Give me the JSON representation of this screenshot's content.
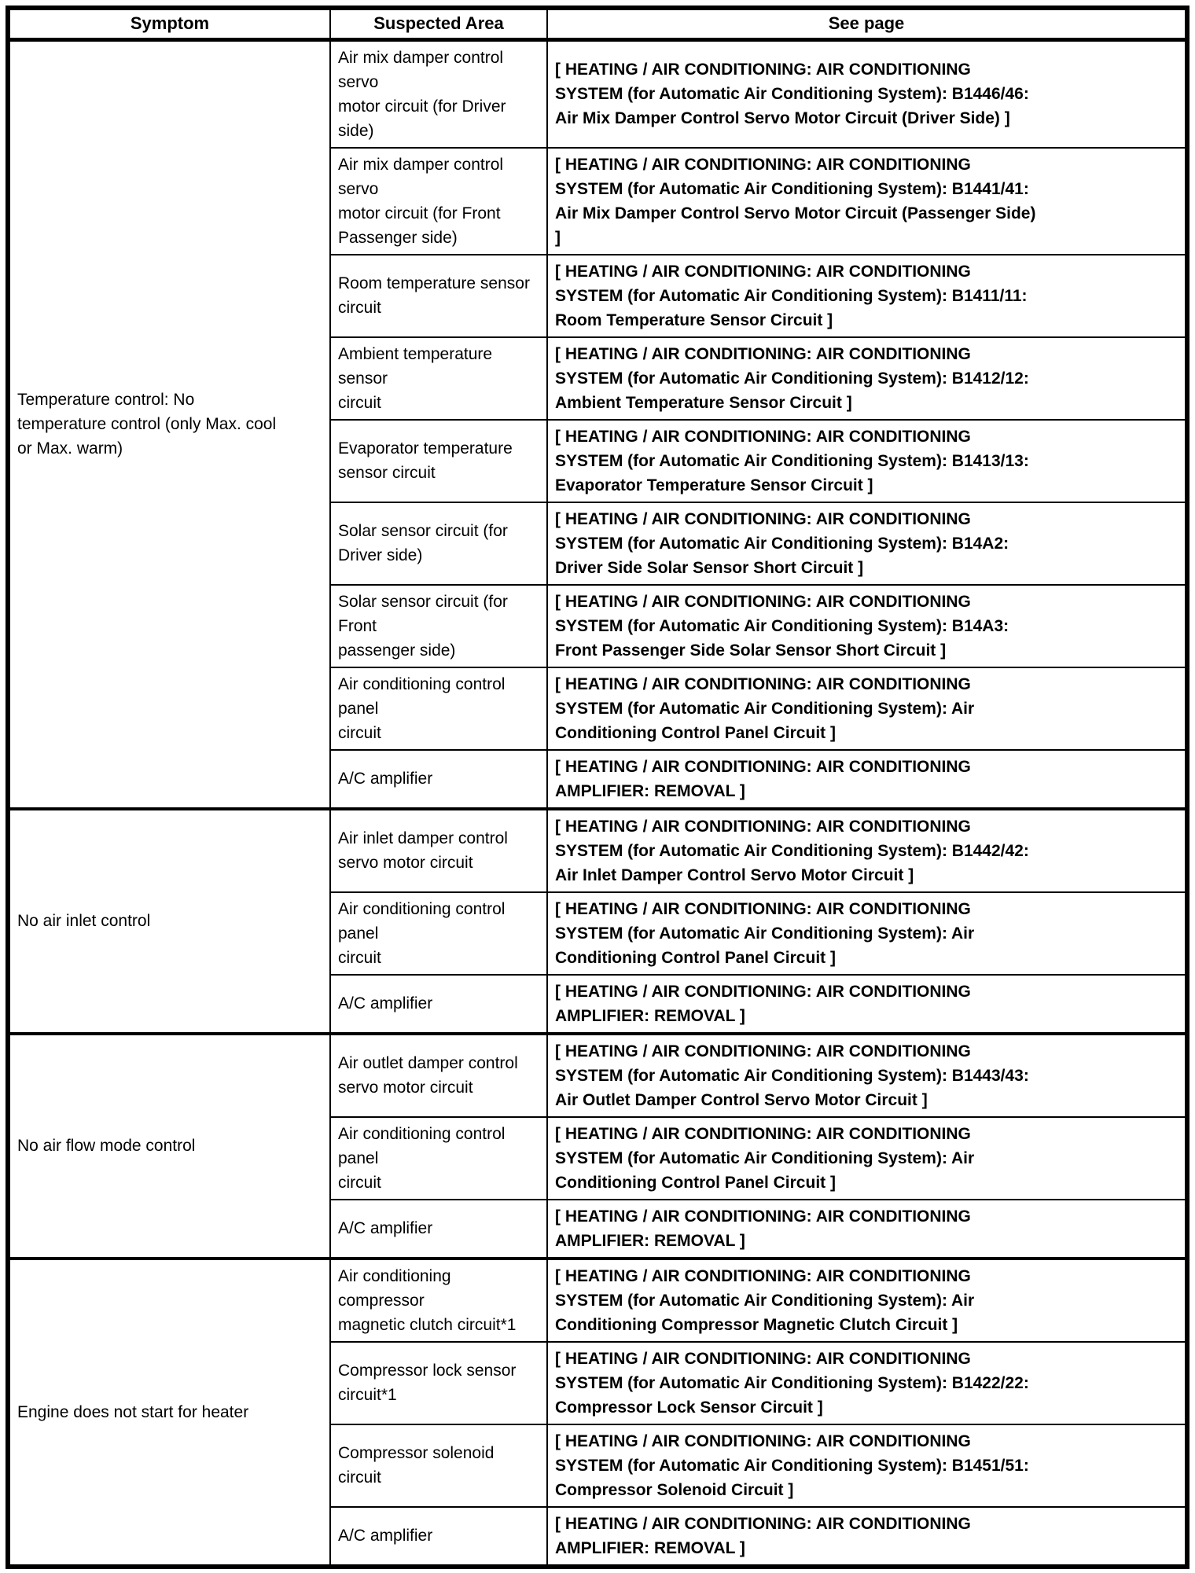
{
  "table": {
    "headers": [
      "Symptom",
      "Suspected Area",
      "See page"
    ],
    "groups": [
      {
        "symptom": "Temperature control: No\ntemperature control (only Max. cool\nor Max. warm)",
        "rows": [
          {
            "suspected_area": "Air mix damper control servo\nmotor circuit (for Driver side)",
            "see_page": "[ HEATING / AIR CONDITIONING: AIR CONDITIONING\nSYSTEM (for Automatic Air Conditioning System): B1446/46:\nAir Mix Damper Control Servo Motor Circuit (Driver Side) ]"
          },
          {
            "suspected_area": "Air mix damper control servo\nmotor circuit (for Front\nPassenger side)",
            "see_page": "[ HEATING / AIR CONDITIONING: AIR CONDITIONING\nSYSTEM (for Automatic Air Conditioning System): B1441/41:\nAir Mix Damper Control Servo Motor Circuit (Passenger Side)\n]"
          },
          {
            "suspected_area": "Room temperature sensor\ncircuit",
            "see_page": "[ HEATING / AIR CONDITIONING: AIR CONDITIONING\nSYSTEM (for Automatic Air Conditioning System): B1411/11:\nRoom Temperature Sensor Circuit ]"
          },
          {
            "suspected_area": "Ambient temperature sensor\ncircuit",
            "see_page": "[ HEATING / AIR CONDITIONING: AIR CONDITIONING\nSYSTEM (for Automatic Air Conditioning System): B1412/12:\nAmbient Temperature Sensor Circuit ]"
          },
          {
            "suspected_area": "Evaporator temperature\nsensor circuit",
            "see_page": "[ HEATING / AIR CONDITIONING: AIR CONDITIONING\nSYSTEM (for Automatic Air Conditioning System): B1413/13:\nEvaporator Temperature Sensor Circuit ]"
          },
          {
            "suspected_area": "Solar sensor circuit (for\nDriver side)",
            "see_page": "[ HEATING / AIR CONDITIONING: AIR CONDITIONING\nSYSTEM (for Automatic Air Conditioning System): B14A2:\nDriver Side Solar Sensor Short Circuit ]"
          },
          {
            "suspected_area": "Solar sensor circuit (for Front\npassenger side)",
            "see_page": "[ HEATING / AIR CONDITIONING: AIR CONDITIONING\nSYSTEM (for Automatic Air Conditioning System): B14A3:\nFront Passenger Side Solar Sensor Short Circuit ]"
          },
          {
            "suspected_area": "Air conditioning control panel\ncircuit",
            "see_page": "[ HEATING / AIR CONDITIONING: AIR CONDITIONING\nSYSTEM (for Automatic Air Conditioning System): Air\nConditioning Control Panel Circuit ]"
          },
          {
            "suspected_area": "A/C amplifier",
            "see_page": "[ HEATING / AIR CONDITIONING: AIR CONDITIONING\nAMPLIFIER: REMOVAL ]"
          }
        ]
      },
      {
        "symptom": "No air inlet control",
        "rows": [
          {
            "suspected_area": "Air inlet damper control\nservo motor circuit",
            "see_page": "[ HEATING / AIR CONDITIONING: AIR CONDITIONING\nSYSTEM (for Automatic Air Conditioning System): B1442/42:\nAir Inlet Damper Control Servo Motor Circuit ]"
          },
          {
            "suspected_area": "Air conditioning control panel\ncircuit",
            "see_page": "[ HEATING / AIR CONDITIONING: AIR CONDITIONING\nSYSTEM (for Automatic Air Conditioning System): Air\nConditioning Control Panel Circuit ]"
          },
          {
            "suspected_area": "A/C amplifier",
            "see_page": "[ HEATING / AIR CONDITIONING: AIR CONDITIONING\nAMPLIFIER: REMOVAL ]"
          }
        ]
      },
      {
        "symptom": "No air flow mode control",
        "rows": [
          {
            "suspected_area": "Air outlet damper control\nservo motor circuit",
            "see_page": "[ HEATING / AIR CONDITIONING: AIR CONDITIONING\nSYSTEM (for Automatic Air Conditioning System): B1443/43:\nAir Outlet Damper Control Servo Motor Circuit ]"
          },
          {
            "suspected_area": "Air conditioning control panel\ncircuit",
            "see_page": "[ HEATING / AIR CONDITIONING: AIR CONDITIONING\nSYSTEM (for Automatic Air Conditioning System): Air\nConditioning Control Panel Circuit ]"
          },
          {
            "suspected_area": "A/C amplifier",
            "see_page": "[ HEATING / AIR CONDITIONING: AIR CONDITIONING\nAMPLIFIER: REMOVAL ]"
          }
        ]
      },
      {
        "symptom": "Engine does not start for heater",
        "rows": [
          {
            "suspected_area": "Air conditioning compressor\nmagnetic clutch circuit*1",
            "see_page": "[ HEATING / AIR CONDITIONING: AIR CONDITIONING\nSYSTEM (for Automatic Air Conditioning System): Air\nConditioning Compressor Magnetic Clutch Circuit ]"
          },
          {
            "suspected_area": "Compressor lock sensor\ncircuit*1",
            "see_page": "[ HEATING / AIR CONDITIONING: AIR CONDITIONING\nSYSTEM (for Automatic Air Conditioning System): B1422/22:\nCompressor Lock Sensor Circuit ]"
          },
          {
            "suspected_area": "Compressor solenoid circuit",
            "see_page": "[ HEATING / AIR CONDITIONING: AIR CONDITIONING\nSYSTEM (for Automatic Air Conditioning System): B1451/51:\nCompressor Solenoid Circuit ]"
          },
          {
            "suspected_area": "A/C amplifier",
            "see_page": "[ HEATING / AIR CONDITIONING: AIR CONDITIONING\nAMPLIFIER: REMOVAL ]"
          }
        ]
      }
    ]
  },
  "colors": {
    "border": "#000000",
    "text": "#000000",
    "background": "#ffffff"
  }
}
